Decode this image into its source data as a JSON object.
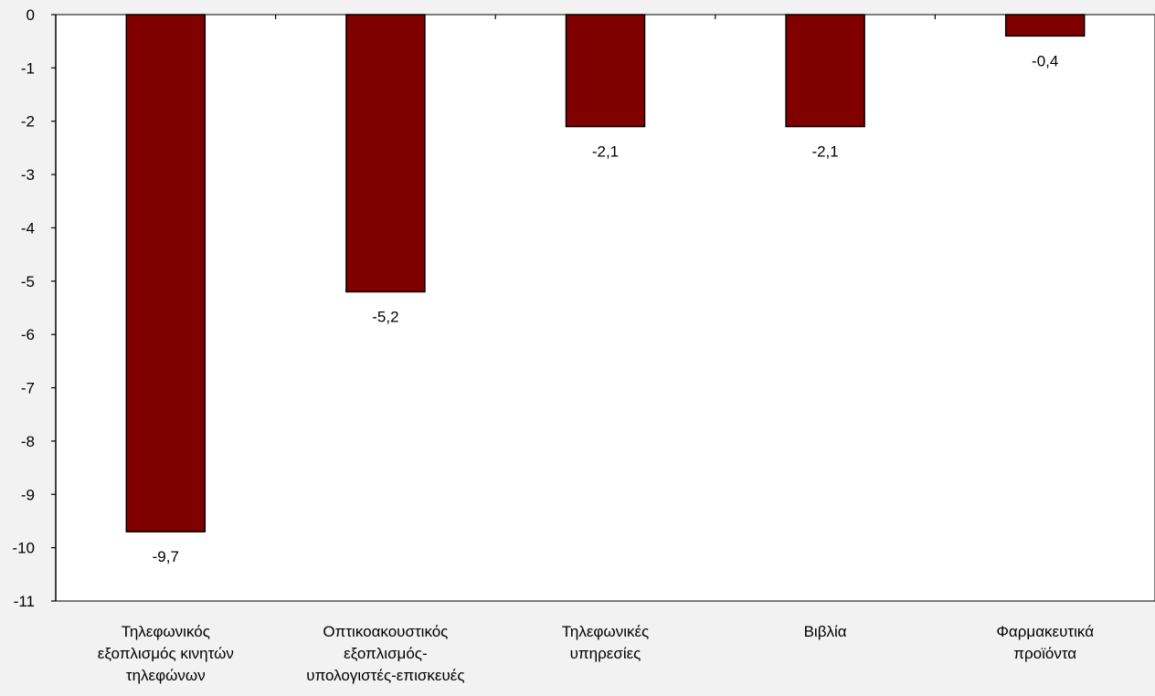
{
  "chart_data": {
    "type": "bar",
    "categories": [
      [
        "Τηλεφωνικός",
        "εξοπλισμός κινητών",
        "τηλεφώνων"
      ],
      [
        "Οπτικοακουστικός",
        "εξοπλισμός-",
        "υπολογιστές-επισκευές"
      ],
      [
        "Τηλεφωνικές",
        "υπηρεσίες"
      ],
      [
        "Βιβλία"
      ],
      [
        "Φαρμακευτικά",
        "προϊόντα"
      ]
    ],
    "values": [
      -9.7,
      -5.2,
      -2.1,
      -2.1,
      -0.4
    ],
    "value_labels": [
      "-9,7",
      "-5,2",
      "-2,1",
      "-2,1",
      "-0,4"
    ],
    "ylim": [
      -11,
      0
    ],
    "yticks": [
      0,
      -1,
      -2,
      -3,
      -4,
      -5,
      -6,
      -7,
      -8,
      -9,
      -10,
      -11
    ],
    "ytick_labels": [
      "0",
      "-1",
      "-2",
      "-3",
      "-4",
      "-5",
      "-6",
      "-7",
      "-8",
      "-9",
      "-10",
      "-11"
    ],
    "grid": false,
    "colors": {
      "bar": "#800000",
      "bar_border": "#000000",
      "plot_bg": "#ffffff",
      "page_bg": "#f2f2f2",
      "axis": "#000000"
    }
  }
}
